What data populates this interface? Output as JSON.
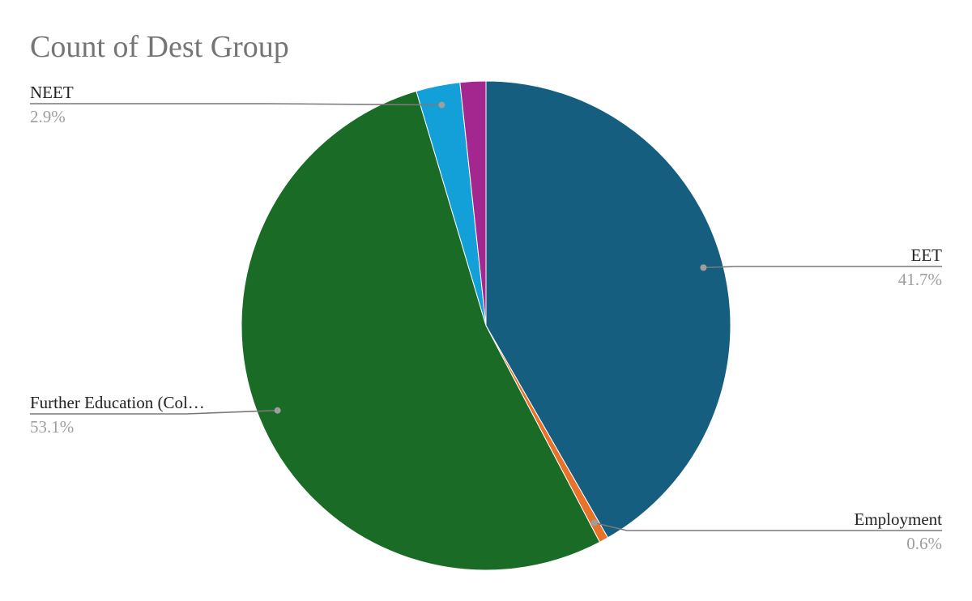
{
  "chart_data": {
    "type": "pie",
    "title": "Count of Dest Group",
    "slices": [
      {
        "label": "EET",
        "value": 41.7,
        "percent_label": "41.7%",
        "color": "#165e80",
        "show_label": true
      },
      {
        "label": "Employment",
        "value": 0.6,
        "percent_label": "0.6%",
        "color": "#e8722a",
        "show_label": true
      },
      {
        "label": "Further Education (Col…",
        "value": 53.1,
        "percent_label": "53.1%",
        "color": "#1a6b25",
        "show_label": true
      },
      {
        "label": "NEET",
        "value": 2.9,
        "percent_label": "2.9%",
        "color": "#139fd8",
        "show_label": true
      },
      {
        "label": "",
        "value": 1.7,
        "percent_label": "",
        "color": "#a3278f",
        "show_label": false
      }
    ],
    "start_angle": "12 o'clock",
    "direction": "clockwise",
    "legend": "none"
  }
}
